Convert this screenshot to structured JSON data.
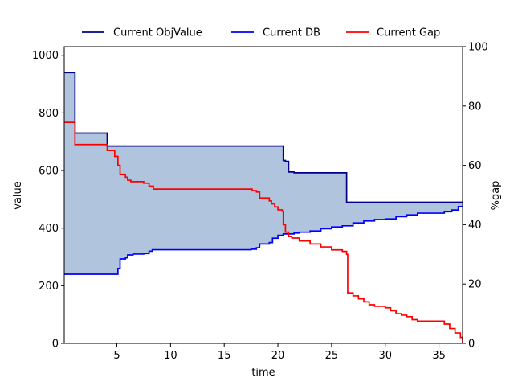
{
  "chart_data": {
    "type": "line",
    "xlabel": "time",
    "ylabel": "value",
    "y2label": "%gap",
    "xlim": [
      0.1,
      37.2
    ],
    "ylim": [
      0,
      1030
    ],
    "y2lim": [
      0,
      100
    ],
    "xticks": [
      5,
      10,
      15,
      20,
      25,
      30,
      35
    ],
    "yticks": [
      0,
      200,
      400,
      600,
      800,
      1000
    ],
    "y2ticks": [
      0,
      20,
      40,
      60,
      80,
      100
    ],
    "grid": false,
    "legend": {
      "placement": "top",
      "entries": [
        "Current ObjValue",
        "Current DB",
        "Current Gap"
      ]
    },
    "fill_between": {
      "upper": "Current ObjValue",
      "lower": "Current DB",
      "color": "#b0c4de"
    },
    "series": [
      {
        "name": "Current ObjValue",
        "axis": "left",
        "color": "#00008b",
        "step": true,
        "x": [
          0.1,
          1.1,
          1.1,
          4.1,
          20.4,
          20.5,
          20.7,
          21.0,
          21.5,
          26.4,
          26.4,
          37.2
        ],
        "y": [
          940,
          810,
          730,
          685,
          685,
          635,
          632,
          595,
          592,
          592,
          490,
          490
        ]
      },
      {
        "name": "Current DB",
        "axis": "left",
        "color": "#0000ff",
        "step": true,
        "x": [
          0.1,
          4.8,
          5.1,
          5.3,
          5.8,
          6.0,
          6.5,
          7.5,
          8.0,
          8.3,
          9.0,
          15.0,
          17.5,
          18.0,
          18.3,
          19.2,
          19.5,
          20.0,
          20.5,
          21.5,
          22.0,
          23.0,
          24.0,
          25.0,
          26.0,
          27.0,
          28.0,
          29.0,
          30.0,
          31.0,
          32.0,
          33.0,
          35.0,
          35.5,
          36.2,
          36.8,
          37.2
        ],
        "y": [
          240,
          240,
          260,
          293,
          297,
          307,
          310,
          312,
          320,
          325,
          325,
          325,
          327,
          332,
          345,
          350,
          365,
          375,
          380,
          383,
          386,
          390,
          398,
          404,
          408,
          418,
          425,
          430,
          432,
          440,
          446,
          452,
          452,
          457,
          463,
          475,
          478
        ]
      },
      {
        "name": "Current Gap",
        "axis": "right",
        "color": "#ff0000",
        "step": true,
        "x": [
          0.1,
          1.1,
          1.1,
          4.1,
          4.8,
          5.1,
          5.3,
          5.8,
          6.0,
          6.3,
          7.5,
          8.0,
          8.4,
          15.0,
          17.6,
          18.0,
          18.3,
          19.2,
          19.4,
          19.7,
          20.0,
          20.4,
          20.5,
          20.7,
          21.0,
          21.3,
          22.0,
          23.0,
          24.0,
          25.0,
          26.0,
          26.4,
          26.5,
          27.0,
          27.5,
          28.0,
          28.5,
          29.0,
          30.0,
          30.5,
          31.0,
          31.5,
          32.0,
          32.5,
          33.0,
          35.0,
          35.5,
          36.0,
          36.5,
          37.0,
          37.2
        ],
        "y": [
          74.5,
          70.5,
          67,
          65,
          63,
          60,
          57,
          56,
          55,
          54.5,
          54,
          53,
          52,
          52,
          51.5,
          51,
          49,
          48,
          47,
          46,
          45,
          44.5,
          40,
          37.5,
          36,
          35.5,
          34.5,
          33.5,
          32.5,
          31.5,
          31,
          30,
          17,
          16,
          15,
          14,
          13,
          12.5,
          12,
          11,
          10,
          9.5,
          9,
          8,
          7.5,
          7.5,
          6.5,
          5,
          3.5,
          2,
          0
        ]
      }
    ]
  }
}
